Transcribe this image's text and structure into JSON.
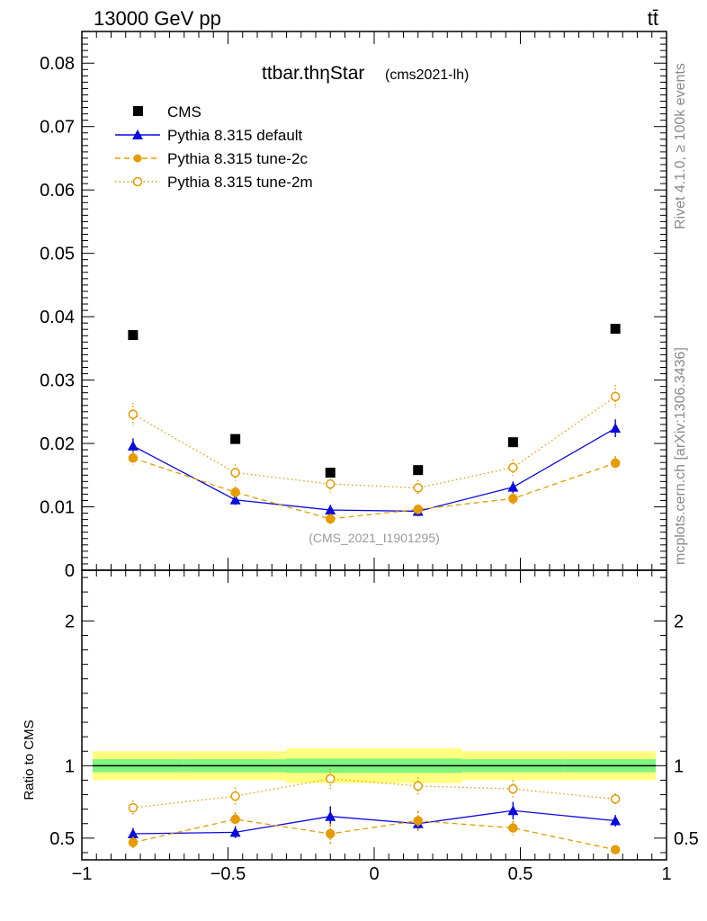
{
  "header": {
    "energy_label": "13000 GeV pp",
    "process_label": "tt̄",
    "side_label_top": "Rivet 4.1.0, ≥ 100k events",
    "side_label_bottom": "mcplots.cern.ch [arXiv:1306.3436]"
  },
  "colors": {
    "cms": "#000000",
    "pythia_default": "#0a0adc",
    "pythia_tune2c": "#e69b00",
    "pythia_tune2m": "#e69b00",
    "band_inner": "#7ff57f",
    "band_outer": "#ffff80"
  },
  "chart_data": [
    {
      "type": "scatter",
      "panel": "main",
      "title": "ttbar.thηStar",
      "subtitle": "(cms2021-lh)",
      "analysis_label": "(CMS_2021_I1901295)",
      "xlabel": "",
      "ylabel": "",
      "xlim": [
        -1,
        1
      ],
      "ylim": [
        0,
        0.085
      ],
      "yticks": [
        0,
        0.01,
        0.02,
        0.03,
        0.04,
        0.05,
        0.06,
        0.07,
        0.08
      ],
      "ytick_labels": [
        "0",
        "0.01",
        "0.02",
        "0.03",
        "0.04",
        "0.05",
        "0.06",
        "0.07",
        "0.08"
      ],
      "bin_edges": [
        -1.0,
        -0.65,
        -0.3,
        0.0,
        0.3,
        0.65,
        1.0
      ],
      "x": [
        -0.825,
        -0.475,
        -0.15,
        0.15,
        0.475,
        0.825
      ],
      "legend_position": "top-left",
      "series": [
        {
          "name": "CMS",
          "marker": "filled-square",
          "line": "none",
          "values": [
            0.0371,
            0.0207,
            0.0154,
            0.0158,
            0.0202,
            0.0381
          ],
          "errors": [
            0,
            0,
            0,
            0,
            0,
            0
          ]
        },
        {
          "name": "Pythia 8.315 default",
          "marker": "filled-triangle",
          "line": "solid",
          "values": [
            0.0196,
            0.0111,
            0.0095,
            0.0093,
            0.0131,
            0.0224
          ],
          "errors": [
            0.0012,
            0.0008,
            0.0008,
            0.0008,
            0.0009,
            0.0014
          ]
        },
        {
          "name": "Pythia 8.315 tune-2c",
          "marker": "filled-circle",
          "line": "dashed",
          "values": [
            0.0177,
            0.0123,
            0.0081,
            0.0096,
            0.0113,
            0.0169
          ],
          "errors": [
            0.0011,
            0.0009,
            0.0008,
            0.0008,
            0.0009,
            0.0011
          ]
        },
        {
          "name": "Pythia 8.315 tune-2m",
          "marker": "open-circle",
          "line": "dotted",
          "values": [
            0.0246,
            0.0154,
            0.0136,
            0.013,
            0.0162,
            0.0274
          ],
          "errors": [
            0.0018,
            0.0013,
            0.0013,
            0.0012,
            0.0013,
            0.0018
          ]
        }
      ]
    },
    {
      "type": "scatter",
      "panel": "ratio",
      "ylabel": "Ratio to CMS",
      "xlim": [
        -1,
        1
      ],
      "ylim": [
        0.35,
        2.35
      ],
      "yticks": [
        0.5,
        1,
        2
      ],
      "ytick_labels": [
        "0.5",
        "1",
        "2"
      ],
      "xticks": [
        -1,
        -0.5,
        0,
        0.5,
        1
      ],
      "xtick_labels": [
        "−1",
        "−0.5",
        "0",
        "0.5",
        "1"
      ],
      "reference_band": {
        "inner_halfwidth": [
          0.045,
          0.045,
          0.05,
          0.05,
          0.045,
          0.045
        ],
        "outer_halfwidth": [
          0.1,
          0.1,
          0.12,
          0.12,
          0.1,
          0.1
        ]
      },
      "series": [
        {
          "name": "Pythia 8.315 default",
          "values": [
            0.53,
            0.54,
            0.65,
            0.6,
            0.69,
            0.62
          ],
          "errors": [
            0.04,
            0.04,
            0.07,
            0.05,
            0.06,
            0.04
          ]
        },
        {
          "name": "Pythia 8.315 tune-2c",
          "values": [
            0.47,
            0.63,
            0.53,
            0.62,
            0.57,
            0.42
          ],
          "errors": [
            0.04,
            0.05,
            0.07,
            0.07,
            0.05,
            0.03
          ]
        },
        {
          "name": "Pythia 8.315 tune-2m",
          "values": [
            0.71,
            0.79,
            0.91,
            0.86,
            0.84,
            0.77
          ],
          "errors": [
            0.05,
            0.06,
            0.07,
            0.06,
            0.06,
            0.04
          ]
        }
      ]
    }
  ]
}
